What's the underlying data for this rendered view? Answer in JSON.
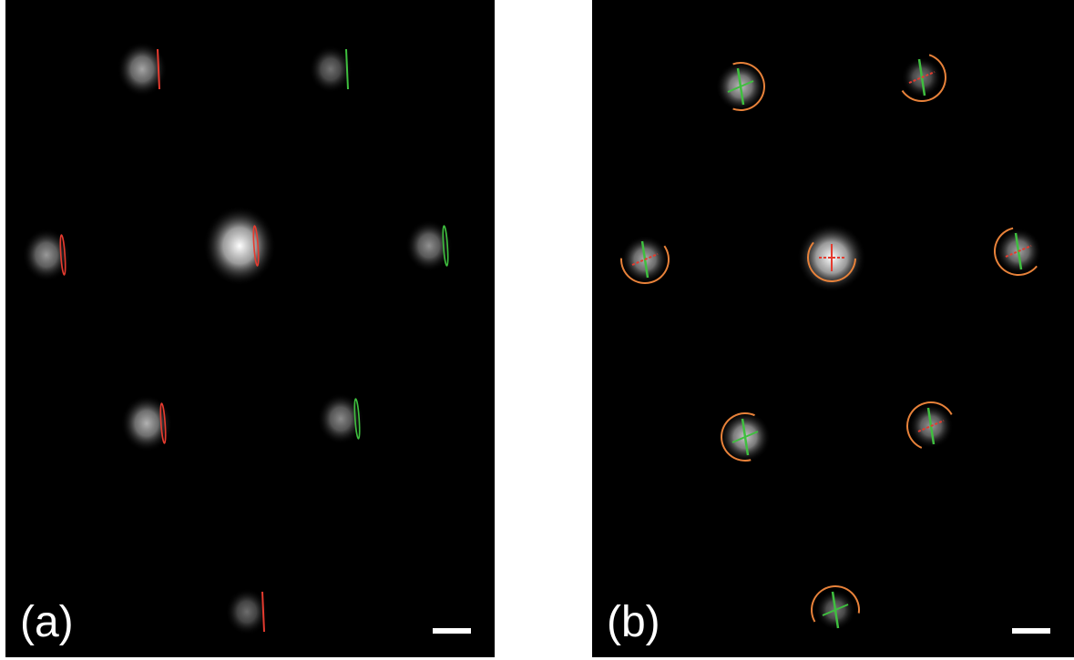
{
  "panels": [
    {
      "id": "a",
      "label": "(a)",
      "spots": [
        {
          "brightness": 0.3,
          "marker": "line",
          "color": "#e53b2f"
        },
        {
          "brightness": 0.1,
          "marker": "line",
          "color": "#3fbf3f"
        },
        {
          "brightness": 0.25,
          "marker": "ellipse",
          "color": "#e53b2f"
        },
        {
          "brightness": 1.0,
          "marker": "ellipse",
          "color": "#e53b2f"
        },
        {
          "brightness": 0.22,
          "marker": "ellipse",
          "color": "#3fbf3f"
        },
        {
          "brightness": 0.35,
          "marker": "ellipse",
          "color": "#e53b2f"
        },
        {
          "brightness": 0.2,
          "marker": "ellipse",
          "color": "#3fbf3f"
        },
        {
          "brightness": 0.08,
          "marker": "line",
          "color": "#e53b2f"
        }
      ]
    },
    {
      "id": "b",
      "label": "(b)",
      "spots": [
        {
          "brightness": 0.4,
          "marker": "cross-arc",
          "color": "#3fbf3f"
        },
        {
          "brightness": 0.12,
          "marker": "cross-arc",
          "color": "#3fbf3f"
        },
        {
          "brightness": 0.35,
          "marker": "cross-arc",
          "color": "#3fbf3f"
        },
        {
          "brightness": 1.0,
          "marker": "cross-arc",
          "color": "#e53b2f"
        },
        {
          "brightness": 0.3,
          "marker": "cross-arc",
          "color": "#3fbf3f"
        },
        {
          "brightness": 0.45,
          "marker": "cross-arc",
          "color": "#3fbf3f"
        },
        {
          "brightness": 0.25,
          "marker": "cross-arc",
          "color": "#3fbf3f"
        },
        {
          "brightness": 0.12,
          "marker": "cross-arc",
          "color": "#3fbf3f"
        }
      ]
    }
  ],
  "colors": {
    "red": "#e53b2f",
    "green": "#3fbf3f",
    "orange": "#e8823a",
    "scale_bar": "#ffffff"
  }
}
